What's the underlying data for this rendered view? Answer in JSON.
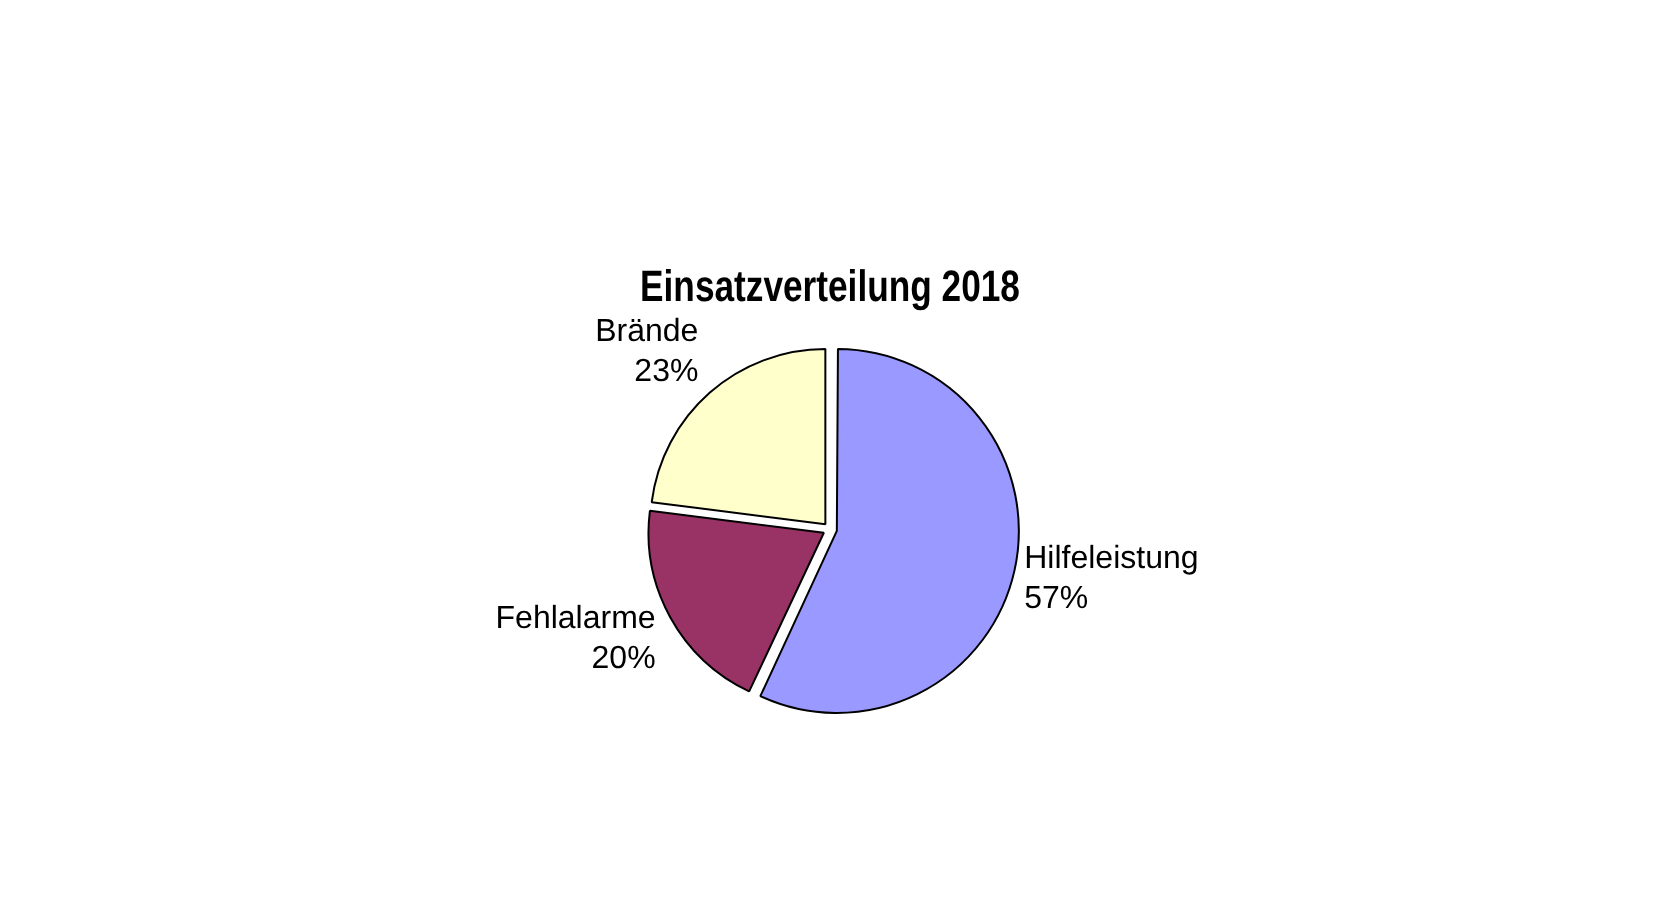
{
  "chart_data": {
    "type": "pie",
    "title": "Einsatzverteilung 2018",
    "categories": [
      "Hilfeleistung",
      "Fehlalarme",
      "Brände"
    ],
    "values": [
      57,
      20,
      23
    ],
    "value_labels": [
      "57%",
      "20%",
      "23%"
    ],
    "colors": [
      "#9999ff",
      "#993366",
      "#ffffcc"
    ],
    "legend": false
  }
}
